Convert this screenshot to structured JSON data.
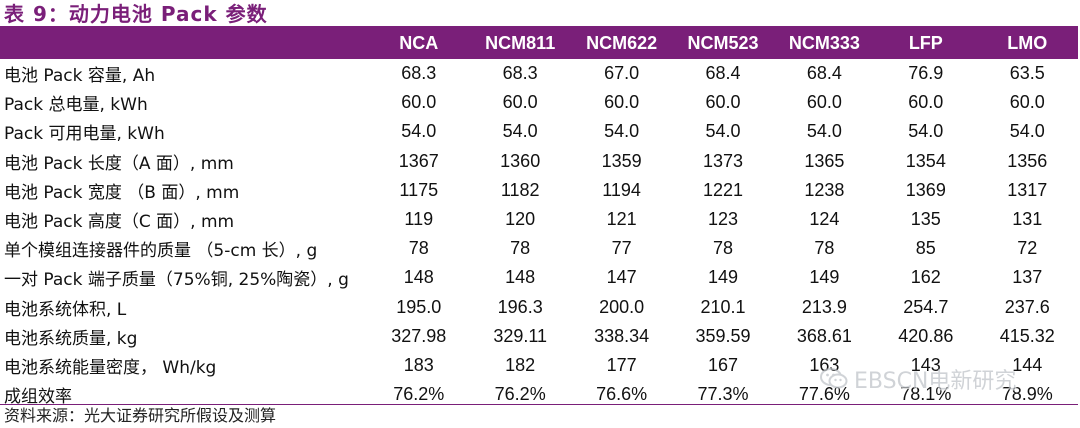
{
  "title": "表 9：动力电池 Pack 参数",
  "table": {
    "label_header": "",
    "headers": [
      "NCA",
      "NCM811",
      "NCM622",
      "NCM523",
      "NCM333",
      "LFP",
      "LMO"
    ],
    "rows": [
      {
        "label": "电池 Pack 容量, Ah",
        "values": [
          "68.3",
          "68.3",
          "67.0",
          "68.4",
          "68.4",
          "76.9",
          "63.5"
        ]
      },
      {
        "label": "Pack 总电量, kWh",
        "values": [
          "60.0",
          "60.0",
          "60.0",
          "60.0",
          "60.0",
          "60.0",
          "60.0"
        ]
      },
      {
        "label": "Pack 可用电量, kWh",
        "values": [
          "54.0",
          "54.0",
          "54.0",
          "54.0",
          "54.0",
          "54.0",
          "54.0"
        ]
      },
      {
        "label": "电池 Pack 长度（A 面）, mm",
        "values": [
          "1367",
          "1360",
          "1359",
          "1373",
          "1365",
          "1354",
          "1356"
        ]
      },
      {
        "label": "电池 Pack 宽度 （B 面）, mm",
        "values": [
          "1175",
          "1182",
          "1194",
          "1221",
          "1238",
          "1369",
          "1317"
        ]
      },
      {
        "label": "电池 Pack 高度（C 面）, mm",
        "values": [
          "119",
          "120",
          "121",
          "123",
          "124",
          "135",
          "131"
        ]
      },
      {
        "label": "单个模组连接器件的质量 （5-cm 长）, g",
        "values": [
          "78",
          "78",
          "77",
          "78",
          "78",
          "85",
          "72"
        ]
      },
      {
        "label": "一对 Pack 端子质量（75%铜, 25%陶瓷）, g",
        "values": [
          "148",
          "148",
          "147",
          "149",
          "149",
          "162",
          "137"
        ]
      },
      {
        "label": "电池系统体积, L",
        "values": [
          "195.0",
          "196.3",
          "200.0",
          "210.1",
          "213.9",
          "254.7",
          "237.6"
        ]
      },
      {
        "label": "电池系统质量, kg",
        "values": [
          "327.98",
          "329.11",
          "338.34",
          "359.59",
          "368.61",
          "420.86",
          "415.32"
        ]
      },
      {
        "label": "电池系统能量密度， Wh/kg",
        "values": [
          "183",
          "182",
          "177",
          "167",
          "163",
          "143",
          "144"
        ]
      },
      {
        "label": "成组效率",
        "values": [
          "76.2%",
          "76.2%",
          "76.6%",
          "77.3%",
          "77.6%",
          "78.1%",
          "78.9%"
        ]
      }
    ]
  },
  "source": "资料来源：光大证券研究所假设及测算",
  "watermark": {
    "text": "EBSCN电新研究",
    "icon": "wechat-icon"
  }
}
